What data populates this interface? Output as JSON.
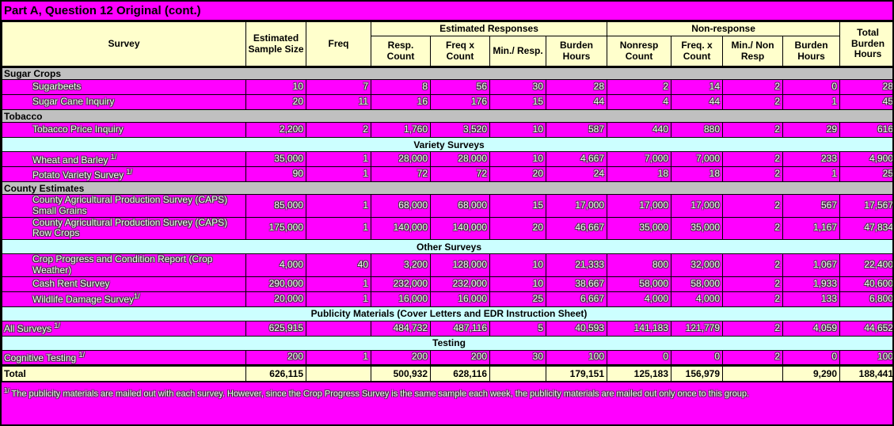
{
  "title": "Part A, Question 12 Original  (cont.)",
  "colors": {
    "highlight_magenta": "#ff00ff",
    "header_cream": "#ffffcc",
    "section_gray": "#c0c0c0",
    "band_cyan": "#ccffff",
    "border_black": "#000000"
  },
  "table": {
    "header": {
      "survey": "Survey",
      "sample_size": "Estimated Sample Size",
      "freq": "Freq",
      "est_responses_group": "Estimated Responses",
      "nonresponse_group": "Non-response",
      "total_burden": "Total Burden Hours",
      "sub": [
        "Resp. Count",
        "Freq x Count",
        "Min./ Resp.",
        "Burden Hours",
        "Nonresp Count",
        "Freq. x Count",
        "Min./ Non Resp",
        "Burden Hours"
      ]
    },
    "rows": [
      {
        "type": "section",
        "label": "Sugar Crops"
      },
      {
        "type": "data",
        "label": "Sugarbeets",
        "values": [
          "10",
          "7",
          "8",
          "56",
          "30",
          "28",
          "2",
          "14",
          "2",
          "0",
          "28"
        ]
      },
      {
        "type": "data",
        "label": "Sugar Cane Inquiry",
        "values": [
          "20",
          "11",
          "16",
          "176",
          "15",
          "44",
          "4",
          "44",
          "2",
          "1",
          "45"
        ]
      },
      {
        "type": "section",
        "label": "Tobacco"
      },
      {
        "type": "data",
        "label": "Tobacco Price Inquiry",
        "values": [
          "2,200",
          "2",
          "1,760",
          "3,520",
          "10",
          "587",
          "440",
          "880",
          "2",
          "29",
          "616"
        ]
      },
      {
        "type": "band",
        "label": "Variety Surveys"
      },
      {
        "type": "data",
        "label": "Wheat and Barley ",
        "marker": "1/",
        "values": [
          "35,000",
          "1",
          "28,000",
          "28,000",
          "10",
          "4,667",
          "7,000",
          "7,000",
          "2",
          "233",
          "4,900"
        ]
      },
      {
        "type": "data",
        "label": "Potato Variety Survey ",
        "marker": "1/",
        "values": [
          "90",
          "1",
          "72",
          "72",
          "20",
          "24",
          "18",
          "18",
          "2",
          "1",
          "25"
        ]
      },
      {
        "type": "section",
        "label": "County Estimates"
      },
      {
        "type": "data",
        "label": "County Agricultural Production Survey (CAPS) Small Grains",
        "values": [
          "85,000",
          "1",
          "68,000",
          "68,000",
          "15",
          "17,000",
          "17,000",
          "17,000",
          "2",
          "567",
          "17,567"
        ]
      },
      {
        "type": "data",
        "label": "County Agricultural Production Survey (CAPS) Row Crops",
        "values": [
          "175,000",
          "1",
          "140,000",
          "140,000",
          "20",
          "46,667",
          "35,000",
          "35,000",
          "2",
          "1,167",
          "47,834"
        ]
      },
      {
        "type": "band",
        "label": "Other Surveys"
      },
      {
        "type": "data",
        "label": "Crop Progress and Condition Report (Crop Weather)",
        "values": [
          "4,000",
          "40",
          "3,200",
          "128,000",
          "10",
          "21,333",
          "800",
          "32,000",
          "2",
          "1,067",
          "22,400"
        ]
      },
      {
        "type": "data",
        "label": "Cash Rent Survey",
        "values": [
          "290,000",
          "1",
          "232,000",
          "232,000",
          "10",
          "38,667",
          "58,000",
          "58,000",
          "2",
          "1,933",
          "40,600"
        ]
      },
      {
        "type": "data",
        "label": "Wildlife Damage Survey",
        "marker": "1/",
        "values": [
          "20,000",
          "1",
          "16,000",
          "16,000",
          "25",
          "6,667",
          "4,000",
          "4,000",
          "2",
          "133",
          "6,800"
        ]
      },
      {
        "type": "band",
        "label": "Publicity Materials (Cover Letters and EDR Instruction Sheet)"
      },
      {
        "type": "data",
        "flush": true,
        "label": "All Surveys ",
        "marker": "1/",
        "values": [
          "625,915",
          "",
          "484,732",
          "487,116",
          "5",
          "40,593",
          "141,183",
          "121,779",
          "2",
          "4,059",
          "44,652"
        ]
      },
      {
        "type": "band",
        "label": "Testing"
      },
      {
        "type": "data",
        "flush": true,
        "label": "Cognitive Testing ",
        "marker": "1/",
        "values": [
          "200",
          "1",
          "200",
          "200",
          "30",
          "100",
          "0",
          "0",
          "2",
          "0",
          "100"
        ]
      },
      {
        "type": "total",
        "flush": true,
        "label": "Total",
        "values": [
          "626,115",
          "",
          "500,932",
          "628,116",
          "",
          "179,151",
          "125,183",
          "156,979",
          "",
          "9,290",
          "188,441"
        ]
      }
    ]
  },
  "footnote": {
    "marker": "1/",
    "text": " The publicity materials are mailed out with each survey.  However, since the Crop Progress Survey is the same sample each week, the publicity materials are mailed out only once to this group."
  }
}
